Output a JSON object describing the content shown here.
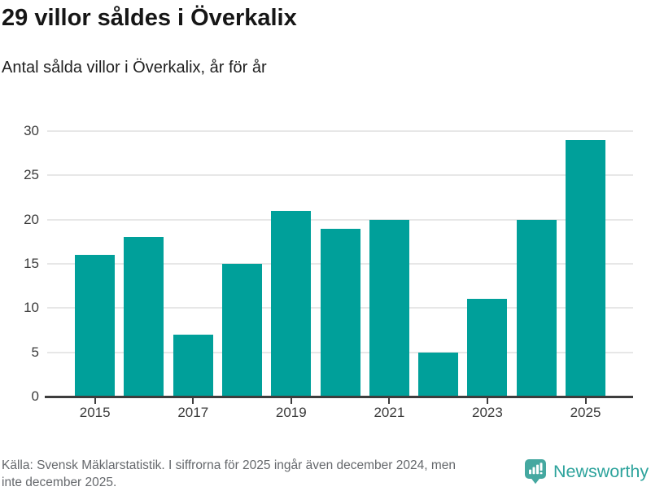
{
  "title": "29 villor såldes i Överkalix",
  "subtitle": "Antal sålda villor i Överkalix, år för år",
  "chart_data": {
    "type": "bar",
    "title": "29 villor såldes i Överkalix",
    "subtitle": "Antal sålda villor i Överkalix, år för år",
    "categories": [
      "2015",
      "2016",
      "2017",
      "2018",
      "2019",
      "2020",
      "2021",
      "2022",
      "2023",
      "2024",
      "2025"
    ],
    "values": [
      16,
      18,
      7,
      15,
      21,
      19,
      20,
      5,
      11,
      20,
      29
    ],
    "xlabel": "",
    "ylabel": "",
    "ylim": [
      0,
      30
    ],
    "yticks": [
      0,
      5,
      10,
      15,
      20,
      25,
      30
    ],
    "xticks_shown": [
      "2015",
      "2017",
      "2019",
      "2021",
      "2023",
      "2025"
    ],
    "grid": "horizontal",
    "legend": "none",
    "bar_color": "#00a09a"
  },
  "footer": {
    "source_lines": [
      "Källa: Svensk Mäklarstatistik. I siffrorna för 2025 ingår även december 2024, men",
      "inte december 2025."
    ]
  },
  "logo": {
    "label": "Newsworthy",
    "icon": "speech-bubble-bar-chart-icon",
    "icon_color": "#45a8a0",
    "text_color": "#2da39c"
  },
  "colors": {
    "bar": "#00a09a",
    "gridline": "#e7e7e7",
    "axis": "#3d3d3d",
    "title_text": "#161616",
    "footer_text": "#65686c",
    "background": "#ffffff"
  }
}
